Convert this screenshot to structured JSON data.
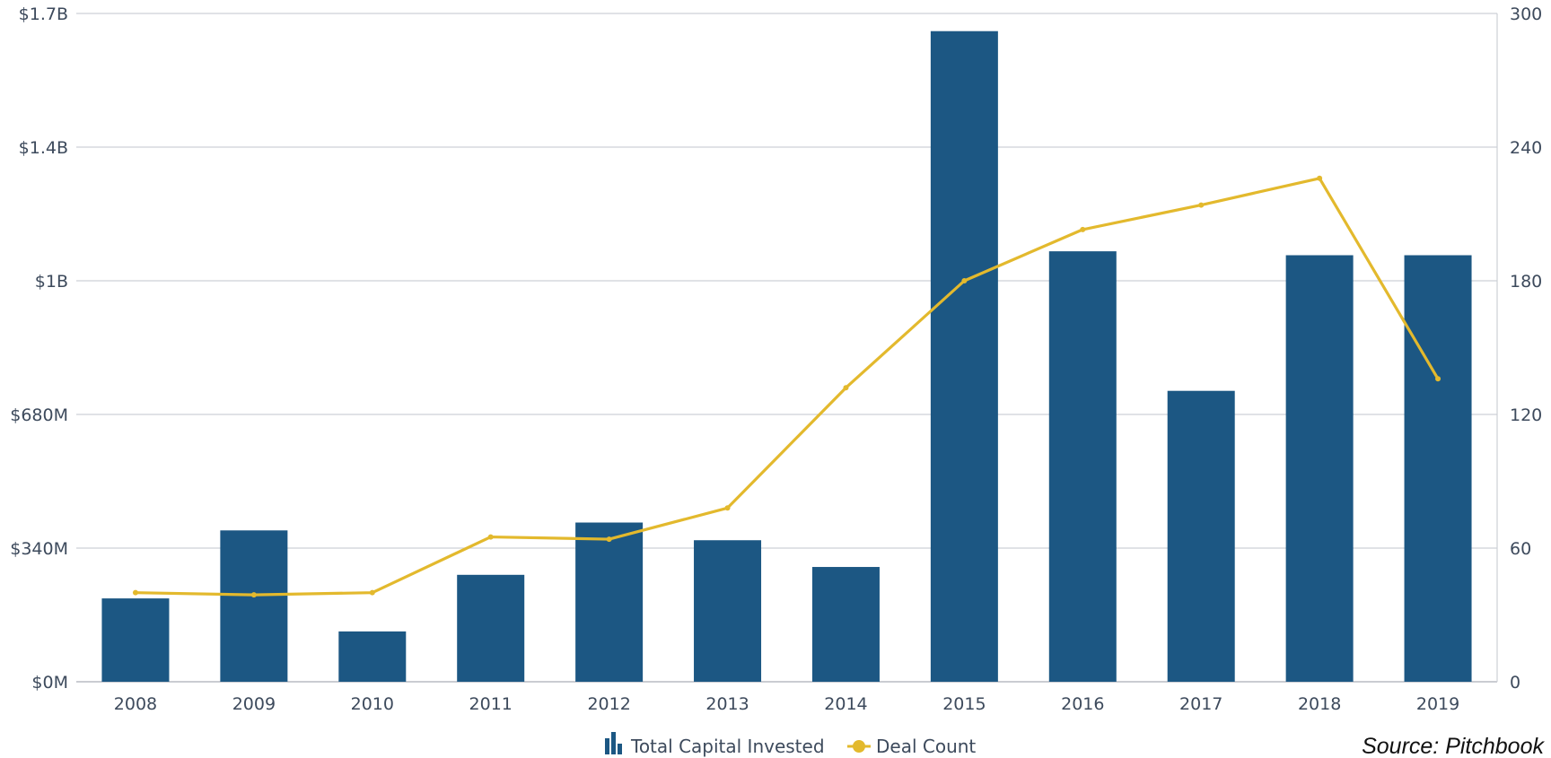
{
  "chart_data": {
    "type": "bar",
    "categories": [
      "2008",
      "2009",
      "2010",
      "2011",
      "2012",
      "2013",
      "2014",
      "2015",
      "2016",
      "2017",
      "2018",
      "2019"
    ],
    "series": [
      {
        "name": "Total Capital Invested",
        "type": "bar",
        "axis": "left",
        "color": "#1c5783",
        "values": [
          212,
          385,
          128,
          272,
          405,
          360,
          292,
          1655,
          1095,
          740,
          1085,
          1085
        ]
      },
      {
        "name": "Deal Count",
        "type": "line",
        "axis": "right",
        "color": "#e3b92d",
        "values": [
          40,
          39,
          40,
          65,
          64,
          78,
          132,
          180,
          203,
          214,
          226,
          136
        ]
      }
    ],
    "y_left": {
      "range": [
        0,
        1700
      ],
      "unit": "$M",
      "ticks": [
        0,
        340,
        680,
        1020,
        1360,
        1700
      ],
      "tick_labels": [
        "$0M",
        "$340M",
        "$680M",
        "$1B",
        "$1.4B",
        "$1.7B"
      ]
    },
    "y_right": {
      "range": [
        0,
        300
      ],
      "ticks": [
        0,
        60,
        120,
        180,
        240,
        300
      ],
      "tick_labels": [
        "0",
        "60",
        "120",
        "180",
        "240",
        "300"
      ]
    },
    "title": "",
    "xlabel": "",
    "ylabel": "",
    "grid": true,
    "legend_position": "bottom-center",
    "source": "Source:  Pitchbook"
  }
}
